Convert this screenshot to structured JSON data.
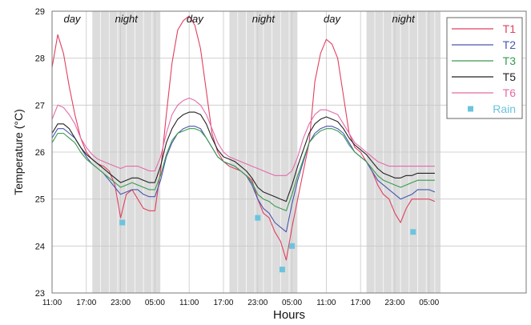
{
  "chart_data": {
    "type": "line",
    "xlabel": "Hours",
    "ylabel": "Temperature (°C)",
    "ylim": [
      23,
      29
    ],
    "xlim": [
      0,
      83
    ],
    "x_unit": "hours",
    "x_ticks": [
      {
        "x": 0,
        "label": "11:00"
      },
      {
        "x": 6,
        "label": "17:00"
      },
      {
        "x": 12,
        "label": "23:00"
      },
      {
        "x": 18,
        "label": "05:00"
      },
      {
        "x": 24,
        "label": "11:00"
      },
      {
        "x": 30,
        "label": "17:00"
      },
      {
        "x": 36,
        "label": "23:00"
      },
      {
        "x": 42,
        "label": "05:00"
      },
      {
        "x": 48,
        "label": "11:00"
      },
      {
        "x": 54,
        "label": "17:00"
      },
      {
        "x": 60,
        "label": "23:00"
      },
      {
        "x": 66,
        "label": "05:00"
      }
    ],
    "y_ticks": [
      23,
      24,
      25,
      26,
      27,
      28,
      29
    ],
    "grid": {
      "vertical": true,
      "horizontal": true
    },
    "periods": [
      {
        "label": "day",
        "start": 0,
        "end": 7,
        "shaded": false
      },
      {
        "label": "night",
        "start": 7,
        "end": 19,
        "shaded": true
      },
      {
        "label": "day",
        "start": 19,
        "end": 31,
        "shaded": false
      },
      {
        "label": "night",
        "start": 31,
        "end": 43,
        "shaded": true
      },
      {
        "label": "day",
        "start": 43,
        "end": 55,
        "shaded": false
      },
      {
        "label": "night",
        "start": 55,
        "end": 68,
        "shaded": true
      }
    ],
    "legend_position": "top-right",
    "x": [
      0,
      1,
      2,
      3,
      4,
      5,
      6,
      7,
      8,
      9,
      10,
      11,
      12,
      13,
      14,
      15,
      16,
      17,
      18,
      19,
      20,
      21,
      22,
      23,
      24,
      25,
      26,
      27,
      28,
      29,
      30,
      31,
      32,
      33,
      34,
      35,
      36,
      37,
      38,
      39,
      40,
      41,
      42,
      43,
      44,
      45,
      46,
      47,
      48,
      49,
      50,
      51,
      52,
      53,
      54,
      55,
      56,
      57,
      58,
      59,
      60,
      61,
      62,
      63,
      64,
      65,
      66,
      67
    ],
    "series": [
      {
        "name": "T1",
        "color": "#e0405f",
        "values": [
          27.8,
          28.5,
          28.1,
          27.4,
          26.8,
          26.3,
          26.0,
          25.85,
          25.75,
          25.7,
          25.6,
          25.3,
          24.6,
          25.1,
          25.2,
          25.0,
          24.8,
          24.75,
          24.75,
          25.6,
          26.8,
          27.9,
          28.6,
          28.8,
          28.9,
          28.7,
          28.2,
          27.3,
          26.4,
          26.0,
          25.8,
          25.7,
          25.65,
          25.6,
          25.5,
          25.4,
          25.0,
          24.7,
          24.6,
          24.3,
          24.1,
          23.7,
          24.4,
          25.0,
          25.6,
          26.2,
          27.5,
          28.1,
          28.4,
          28.3,
          28.0,
          27.2,
          26.4,
          26.1,
          26.0,
          25.8,
          25.6,
          25.3,
          25.1,
          25.0,
          24.7,
          24.5,
          24.8,
          25.0,
          25.0,
          25.0,
          25.0,
          24.95
        ]
      },
      {
        "name": "T2",
        "color": "#4a55b0",
        "values": [
          26.3,
          26.5,
          26.5,
          26.4,
          26.3,
          26.1,
          25.9,
          25.75,
          25.65,
          25.55,
          25.4,
          25.25,
          25.1,
          25.15,
          25.2,
          25.2,
          25.1,
          25.05,
          25.05,
          25.4,
          25.9,
          26.2,
          26.4,
          26.5,
          26.55,
          26.55,
          26.5,
          26.3,
          26.1,
          25.9,
          25.8,
          25.75,
          25.7,
          25.6,
          25.5,
          25.3,
          25.0,
          24.8,
          24.7,
          24.5,
          24.4,
          24.3,
          24.9,
          25.4,
          25.8,
          26.2,
          26.4,
          26.5,
          26.55,
          26.55,
          26.5,
          26.4,
          26.2,
          26.0,
          25.9,
          25.8,
          25.6,
          25.4,
          25.3,
          25.2,
          25.1,
          25.0,
          25.05,
          25.1,
          25.2,
          25.2,
          25.2,
          25.15
        ]
      },
      {
        "name": "T3",
        "color": "#3a9a50",
        "values": [
          26.2,
          26.4,
          26.4,
          26.3,
          26.2,
          26.0,
          25.85,
          25.75,
          25.65,
          25.55,
          25.45,
          25.35,
          25.25,
          25.3,
          25.35,
          25.3,
          25.25,
          25.2,
          25.2,
          25.5,
          25.95,
          26.25,
          26.4,
          26.45,
          26.5,
          26.5,
          26.45,
          26.3,
          26.1,
          25.9,
          25.8,
          25.75,
          25.7,
          25.6,
          25.5,
          25.35,
          25.1,
          25.0,
          24.95,
          24.85,
          24.8,
          24.75,
          25.1,
          25.5,
          25.85,
          26.2,
          26.35,
          26.45,
          26.5,
          26.5,
          26.45,
          26.35,
          26.15,
          26.0,
          25.9,
          25.8,
          25.65,
          25.5,
          25.4,
          25.35,
          25.3,
          25.25,
          25.3,
          25.35,
          25.4,
          25.4,
          25.4,
          25.4
        ]
      },
      {
        "name": "T5",
        "color": "#222222",
        "values": [
          26.4,
          26.6,
          26.6,
          26.5,
          26.3,
          26.1,
          25.95,
          25.85,
          25.75,
          25.65,
          25.55,
          25.45,
          25.35,
          25.4,
          25.45,
          25.45,
          25.4,
          25.35,
          25.35,
          25.7,
          26.2,
          26.5,
          26.7,
          26.8,
          26.85,
          26.85,
          26.8,
          26.6,
          26.3,
          26.05,
          25.9,
          25.85,
          25.8,
          25.7,
          25.6,
          25.45,
          25.25,
          25.15,
          25.1,
          25.05,
          25.0,
          24.95,
          25.3,
          25.7,
          26.05,
          26.4,
          26.6,
          26.7,
          26.75,
          26.7,
          26.65,
          26.5,
          26.3,
          26.15,
          26.05,
          25.95,
          25.8,
          25.65,
          25.55,
          25.5,
          25.45,
          25.45,
          25.5,
          25.5,
          25.55,
          25.55,
          25.55,
          25.55
        ]
      },
      {
        "name": "T6",
        "color": "#e56aa8",
        "values": [
          26.7,
          27.0,
          26.95,
          26.8,
          26.6,
          26.3,
          26.1,
          25.95,
          25.85,
          25.8,
          25.75,
          25.7,
          25.65,
          25.7,
          25.7,
          25.7,
          25.65,
          25.6,
          25.6,
          25.9,
          26.4,
          26.8,
          27.0,
          27.1,
          27.15,
          27.1,
          27.0,
          26.8,
          26.5,
          26.2,
          26.0,
          25.9,
          25.85,
          25.8,
          25.75,
          25.7,
          25.65,
          25.6,
          25.55,
          25.5,
          25.5,
          25.5,
          25.6,
          25.9,
          26.3,
          26.6,
          26.8,
          26.9,
          26.9,
          26.85,
          26.8,
          26.6,
          26.4,
          26.2,
          26.1,
          26.0,
          25.9,
          25.8,
          25.75,
          25.7,
          25.7,
          25.7,
          25.7,
          25.7,
          25.7,
          25.7,
          25.7,
          25.7
        ]
      }
    ],
    "rain": {
      "name": "Rain",
      "color": "#6bc4dd",
      "points": [
        {
          "x": 12.3,
          "y": 24.5
        },
        {
          "x": 36.0,
          "y": 24.6
        },
        {
          "x": 40.3,
          "y": 23.5
        },
        {
          "x": 42.0,
          "y": 24.0
        },
        {
          "x": 63.2,
          "y": 24.3
        }
      ]
    }
  }
}
